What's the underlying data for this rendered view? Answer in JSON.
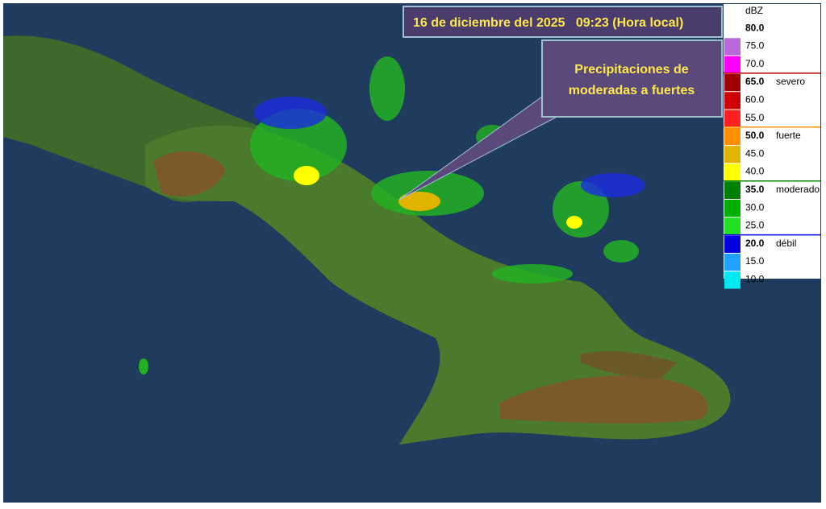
{
  "header": {
    "title": "16 de diciembre del 2025   09:23 (Hora local)"
  },
  "callout": {
    "text_lines": [
      "Precipitaciones de",
      "moderadas a fuertes"
    ]
  },
  "legend": {
    "unit": "dBZ",
    "groups": [
      {
        "label": null,
        "color": "#ffffff",
        "entries": [
          {
            "value": "80.0",
            "color": "#ffffff"
          },
          {
            "value": "75.0",
            "color": "#b868d8"
          },
          {
            "value": "70.0",
            "color": "#ff00ff"
          }
        ]
      },
      {
        "label": "severo",
        "color": "#c00000",
        "entries": [
          {
            "value": "65.0",
            "color": "#a00000"
          },
          {
            "value": "60.0",
            "color": "#d00000"
          },
          {
            "value": "55.0",
            "color": "#ff2020"
          }
        ]
      },
      {
        "label": "fuerte",
        "color": "#ff9000",
        "entries": [
          {
            "value": "50.0",
            "color": "#ff9000"
          },
          {
            "value": "45.0",
            "color": "#e0b400"
          },
          {
            "value": "40.0",
            "color": "#ffff00"
          }
        ]
      },
      {
        "label": "moderado",
        "color": "#008000",
        "entries": [
          {
            "value": "35.0",
            "color": "#008000"
          },
          {
            "value": "30.0",
            "color": "#00b000"
          },
          {
            "value": "25.0",
            "color": "#20e020"
          }
        ]
      },
      {
        "label": "débil",
        "color": "#0000e0",
        "entries": [
          {
            "value": "20.0",
            "color": "#0000e0"
          },
          {
            "value": "15.0",
            "color": "#20a0ff"
          },
          {
            "value": "10.0",
            "color": "#00e8f0"
          }
        ]
      }
    ]
  }
}
